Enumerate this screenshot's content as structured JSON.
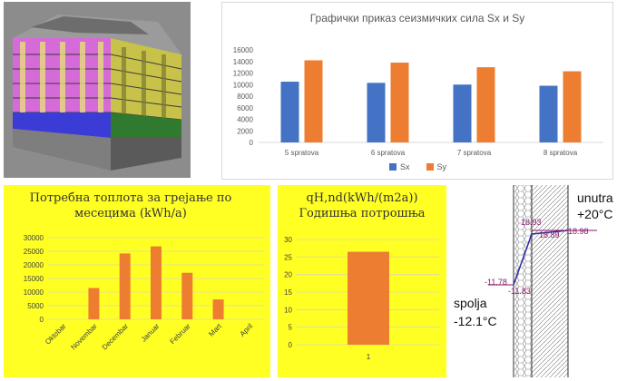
{
  "colors": {
    "sx": "#4472c4",
    "sy": "#ed7d31",
    "heat_bar": "#ed7d31",
    "panel_yellow": "#ffff24"
  },
  "chart_data": [
    {
      "type": "bar",
      "title": "Графички приказ сеизмичких сила Sx и  Sy",
      "categories": [
        "5 spratova",
        "6 spratova",
        "7 spratova",
        "8 spratova"
      ],
      "series": [
        {
          "name": "Sx",
          "values": [
            10500,
            10300,
            10000,
            9800
          ]
        },
        {
          "name": "Sy",
          "values": [
            14200,
            13800,
            13000,
            12300
          ]
        }
      ],
      "ylim": [
        0,
        16000
      ],
      "yticks": [
        "0",
        "2000",
        "4000",
        "6000",
        "8000",
        "10000",
        "12000",
        "14000",
        "16000"
      ],
      "legend": "bottom",
      "grid": false
    },
    {
      "type": "bar",
      "title": "Потребна топлота за грејање по месецима (kWh/a)",
      "categories": [
        "Oktobar",
        "Novembar",
        "Decembar",
        "Januar",
        "Februar",
        "Mart",
        "April"
      ],
      "values": [
        0,
        11500,
        24200,
        26800,
        17100,
        7300,
        0
      ],
      "ylim": [
        0,
        30000
      ],
      "yticks": [
        "0",
        "5000",
        "10000",
        "15000",
        "20000",
        "25000",
        "30000"
      ],
      "grid": true
    },
    {
      "type": "bar",
      "title": "qH,nd(kWh/(m2a)) Годишња потрошња",
      "categories": [
        "1"
      ],
      "values": [
        26.5
      ],
      "ylim": [
        0,
        30
      ],
      "yticks": [
        "0",
        "5",
        "10",
        "15",
        "20",
        "25",
        "30"
      ],
      "grid": true
    }
  ],
  "wall": {
    "inside_label": "unutra",
    "inside_temp": "+20°C",
    "outside_label": "spolja",
    "outside_temp": "-12.1°C",
    "values": [
      "18.93",
      "18.89",
      "18.98",
      "-11.78",
      "-11.83"
    ]
  }
}
